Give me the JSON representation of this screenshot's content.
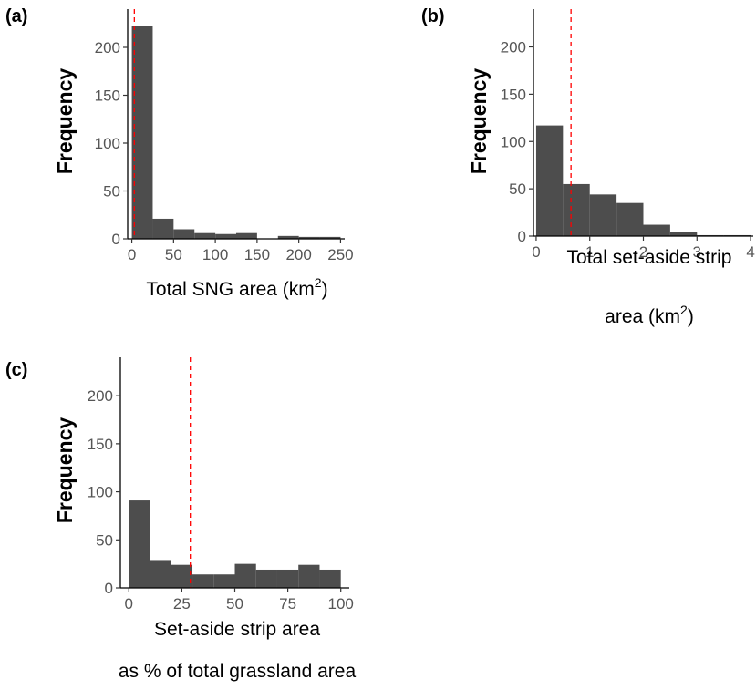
{
  "chart_data": [
    {
      "panel": "(a)",
      "type": "bar",
      "ylabel": "Frequency",
      "xlabel_main": "Total SNG area (km",
      "xlabel_sup": "2",
      "xlabel_end": ")",
      "xlim": [
        -5,
        255
      ],
      "ylim": [
        0,
        240
      ],
      "xticks": [
        0,
        50,
        100,
        150,
        200,
        250
      ],
      "yticks": [
        0,
        50,
        100,
        150,
        200
      ],
      "bin_edges": [
        0,
        25,
        50,
        75,
        100,
        125,
        150,
        175,
        200,
        225,
        250
      ],
      "values": [
        222,
        21,
        10,
        6,
        5,
        6,
        0,
        3,
        2,
        2
      ],
      "vline": 3,
      "vline_color": "#ff0000",
      "bar_color": "#4d4d4d"
    },
    {
      "panel": "(b)",
      "type": "bar",
      "ylabel": "Frequency",
      "xlabel_main": "Total set-aside strip",
      "xlabel_line2_main": "area (km",
      "xlabel_sup": "2",
      "xlabel_end": ")",
      "xlim": [
        -0.05,
        4.05
      ],
      "ylim": [
        0,
        240
      ],
      "xticks": [
        0,
        1,
        2,
        3,
        4
      ],
      "yticks": [
        0,
        50,
        100,
        150,
        200
      ],
      "bin_edges": [
        0,
        0.5,
        1,
        1.5,
        2,
        2.5,
        3,
        3.5,
        4
      ],
      "values": [
        117,
        55,
        44,
        35,
        12,
        4,
        1,
        1
      ],
      "vline": 0.65,
      "vline_color": "#ff0000",
      "bar_color": "#4d4d4d"
    },
    {
      "panel": "(c)",
      "type": "bar",
      "ylabel": "Frequency",
      "xlabel_main": "Set-aside strip area",
      "xlabel_line2_main": "as % of total grassland area",
      "xlim": [
        -4,
        104
      ],
      "ylim": [
        0,
        240
      ],
      "xticks": [
        0,
        25,
        50,
        75,
        100
      ],
      "yticks": [
        0,
        50,
        100,
        150,
        200
      ],
      "bin_edges": [
        0,
        10,
        20,
        30,
        40,
        50,
        60,
        70,
        80,
        90,
        100
      ],
      "values": [
        91,
        29,
        24,
        14,
        14,
        25,
        19,
        19,
        24,
        19
      ],
      "vline": 29,
      "vline_color": "#ff0000",
      "bar_color": "#4d4d4d"
    }
  ]
}
